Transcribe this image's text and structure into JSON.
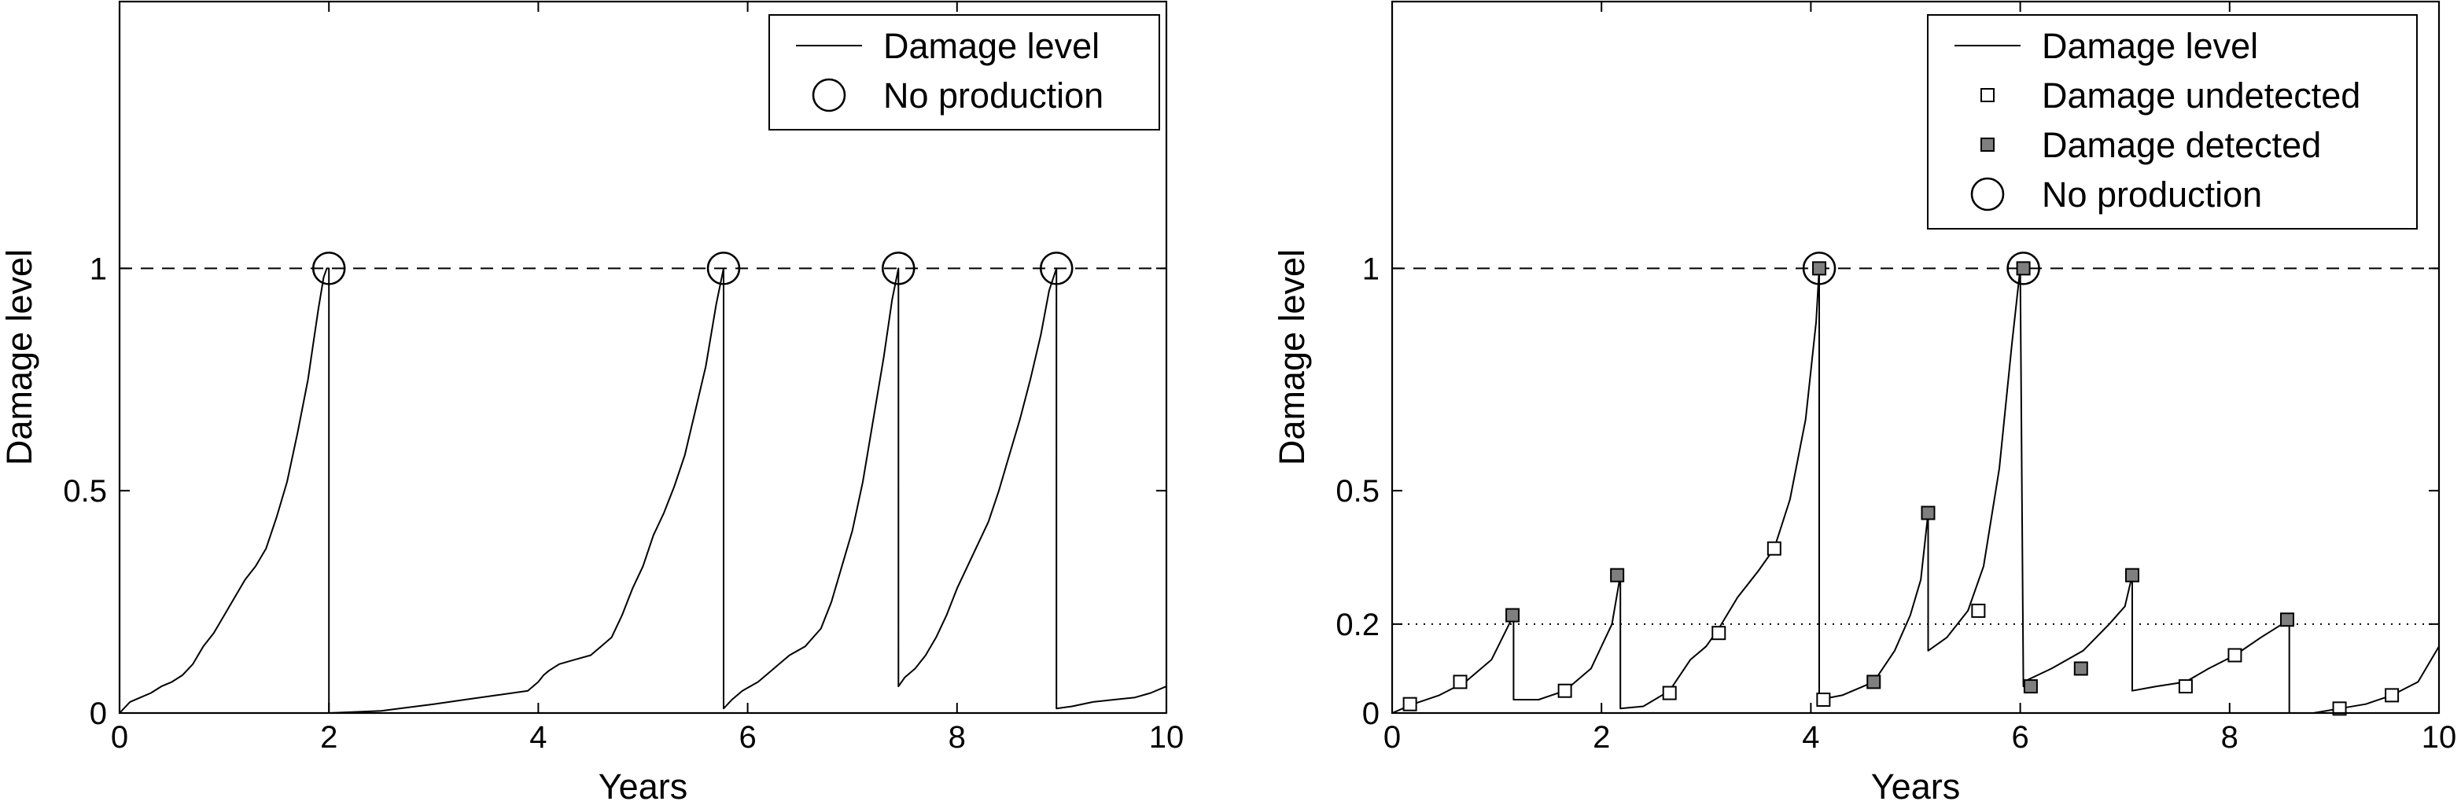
{
  "chart_data": [
    {
      "type": "line",
      "panel": "left",
      "xlabel": "Years",
      "ylabel": "Damage level",
      "xlim": [
        0,
        10
      ],
      "ylim": [
        0,
        1.6
      ],
      "xticks": [
        0,
        2,
        4,
        6,
        8,
        10
      ],
      "yticks": [
        0,
        0.5,
        1
      ],
      "threshold": 1,
      "legend_position": "top-right",
      "legend": [
        {
          "label": "Damage level",
          "marker": "line"
        },
        {
          "label": "No production",
          "marker": "circle"
        }
      ],
      "damage_level": {
        "x": [
          0.0,
          0.1,
          0.2,
          0.3,
          0.4,
          0.5,
          0.6,
          0.7,
          0.8,
          0.9,
          1.0,
          1.1,
          1.2,
          1.3,
          1.4,
          1.5,
          1.6,
          1.7,
          1.8,
          1.85,
          1.9,
          1.95,
          1.98,
          2.0,
          2.0,
          2.5,
          3.0,
          3.3,
          3.6,
          3.9,
          4.0,
          4.05,
          4.1,
          4.2,
          4.35,
          4.5,
          4.6,
          4.7,
          4.8,
          4.9,
          5.0,
          5.1,
          5.2,
          5.3,
          5.4,
          5.5,
          5.6,
          5.7,
          5.77,
          5.77,
          5.85,
          5.95,
          6.1,
          6.2,
          6.3,
          6.4,
          6.55,
          6.7,
          6.8,
          6.9,
          7.0,
          7.1,
          7.2,
          7.3,
          7.38,
          7.44,
          7.44,
          7.5,
          7.6,
          7.7,
          7.8,
          7.9,
          8.0,
          8.1,
          8.2,
          8.3,
          8.4,
          8.5,
          8.6,
          8.7,
          8.8,
          8.88,
          8.95,
          8.95,
          9.1,
          9.3,
          9.5,
          9.7,
          9.85,
          10.0
        ],
        "y": [
          0.0,
          0.025,
          0.035,
          0.045,
          0.06,
          0.07,
          0.085,
          0.11,
          0.15,
          0.18,
          0.22,
          0.26,
          0.3,
          0.33,
          0.37,
          0.44,
          0.52,
          0.63,
          0.75,
          0.83,
          0.91,
          0.98,
          1.0,
          1.0,
          0.0,
          0.005,
          0.02,
          0.03,
          0.04,
          0.05,
          0.07,
          0.085,
          0.095,
          0.11,
          0.12,
          0.13,
          0.15,
          0.17,
          0.22,
          0.28,
          0.33,
          0.4,
          0.45,
          0.51,
          0.58,
          0.68,
          0.78,
          0.92,
          1.0,
          0.01,
          0.03,
          0.05,
          0.07,
          0.09,
          0.11,
          0.13,
          0.15,
          0.19,
          0.25,
          0.33,
          0.41,
          0.52,
          0.66,
          0.8,
          0.93,
          1.0,
          0.06,
          0.08,
          0.1,
          0.13,
          0.17,
          0.22,
          0.28,
          0.33,
          0.38,
          0.43,
          0.5,
          0.58,
          0.66,
          0.75,
          0.85,
          0.95,
          1.0,
          0.01,
          0.015,
          0.025,
          0.03,
          0.035,
          0.045,
          0.06
        ]
      },
      "no_production": {
        "x": [
          2.0,
          5.77,
          7.44,
          8.95
        ],
        "y": [
          1,
          1,
          1,
          1
        ]
      }
    },
    {
      "type": "line",
      "panel": "right",
      "xlabel": "Years",
      "ylabel": "Damage level",
      "xlim": [
        0,
        10
      ],
      "ylim": [
        0,
        1.6
      ],
      "xticks": [
        0,
        2,
        4,
        6,
        8,
        10
      ],
      "yticks": [
        0,
        0.2,
        0.5,
        1
      ],
      "threshold": 1,
      "detection_threshold": 0.2,
      "legend_position": "top-right",
      "legend": [
        {
          "label": "Damage level",
          "marker": "line"
        },
        {
          "label": "Damage undetected",
          "marker": "open-square"
        },
        {
          "label": "Damage detected",
          "marker": "filled-square"
        },
        {
          "label": "No production",
          "marker": "circle"
        }
      ],
      "damage_level": {
        "x": [
          0.0,
          0.2,
          0.45,
          0.7,
          0.95,
          1.16,
          1.16,
          1.4,
          1.65,
          1.9,
          2.1,
          2.18,
          2.18,
          2.4,
          2.65,
          2.85,
          3.0,
          3.12,
          3.3,
          3.5,
          3.65,
          3.8,
          3.95,
          4.05,
          4.08,
          4.08,
          4.3,
          4.6,
          4.8,
          4.95,
          5.05,
          5.12,
          5.12,
          5.3,
          5.5,
          5.65,
          5.8,
          5.92,
          6.0,
          6.03,
          6.03,
          6.3,
          6.6,
          6.85,
          7.0,
          7.07,
          7.07,
          7.3,
          7.58,
          7.8,
          8.05,
          8.3,
          8.57,
          8.57,
          8.8,
          9.05,
          9.3,
          9.55,
          9.8,
          10.0
        ],
        "y": [
          0.0,
          0.02,
          0.04,
          0.07,
          0.12,
          0.22,
          0.03,
          0.03,
          0.05,
          0.1,
          0.2,
          0.31,
          0.01,
          0.015,
          0.05,
          0.12,
          0.15,
          0.19,
          0.26,
          0.32,
          0.37,
          0.48,
          0.66,
          0.88,
          1.0,
          0.03,
          0.04,
          0.07,
          0.14,
          0.22,
          0.3,
          0.45,
          0.14,
          0.17,
          0.23,
          0.33,
          0.55,
          0.83,
          1.0,
          0.06,
          0.07,
          0.1,
          0.14,
          0.2,
          0.24,
          0.31,
          0.05,
          0.06,
          0.07,
          0.1,
          0.13,
          0.17,
          0.21,
          0.0,
          0.0,
          0.01,
          0.02,
          0.04,
          0.07,
          0.15
        ]
      },
      "damage_undetected": {
        "x": [
          0.17,
          0.65,
          1.65,
          2.65,
          3.12,
          3.65,
          4.12,
          5.6,
          7.58,
          8.05,
          9.05,
          9.55
        ],
        "y": [
          0.02,
          0.07,
          0.05,
          0.045,
          0.18,
          0.37,
          0.03,
          0.23,
          0.06,
          0.13,
          0.01,
          0.04
        ]
      },
      "damage_detected": {
        "x": [
          1.15,
          2.15,
          4.08,
          4.6,
          5.12,
          6.03,
          6.1,
          6.58,
          7.07,
          8.55
        ],
        "y": [
          0.22,
          0.31,
          1.0,
          0.07,
          0.45,
          1.0,
          0.06,
          0.1,
          0.31,
          0.21
        ]
      },
      "no_production": {
        "x": [
          4.08,
          6.03
        ],
        "y": [
          1,
          1
        ]
      }
    }
  ]
}
